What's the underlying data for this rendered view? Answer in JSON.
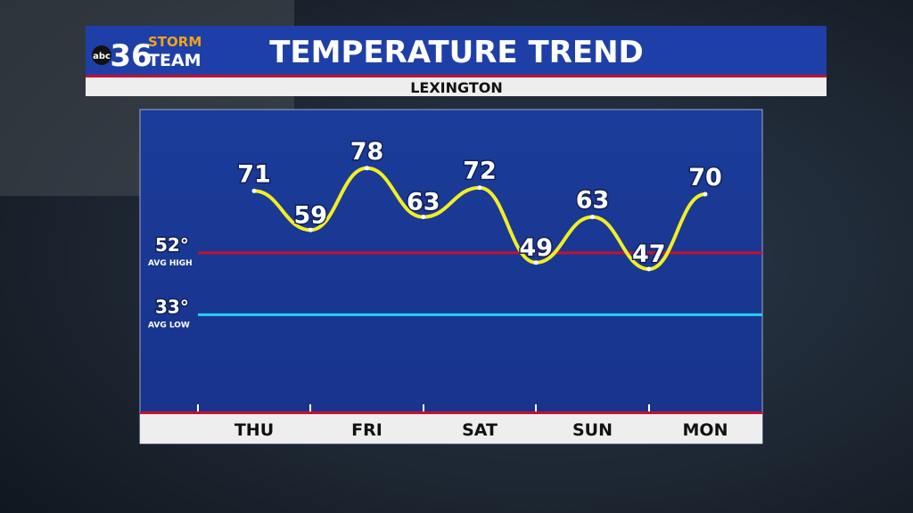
{
  "chart_data": {
    "type": "line",
    "logo_network": "abc",
    "logo_number": "36",
    "logo_top": "STORM",
    "logo_bottom": "TEAM",
    "title": "TEMPERATURE TREND",
    "subtitle": "LEXINGTON",
    "categories": [
      "THU",
      null,
      "FRI",
      null,
      "SAT",
      null,
      "SUN",
      null,
      "MON"
    ],
    "series": [
      {
        "name": "Temperature",
        "color": "#f2ee22",
        "values": [
          71,
          59,
          78,
          63,
          72,
          49,
          63,
          47,
          70
        ]
      }
    ],
    "ylim": [
      3,
      96
    ],
    "reference_lines": [
      {
        "value": 52,
        "value_label": "52°",
        "label": "AVG HIGH",
        "color": "#c8102e"
      },
      {
        "value": 33,
        "value_label": "33°",
        "label": "AVG LOW",
        "color": "#22d3f0"
      }
    ]
  }
}
